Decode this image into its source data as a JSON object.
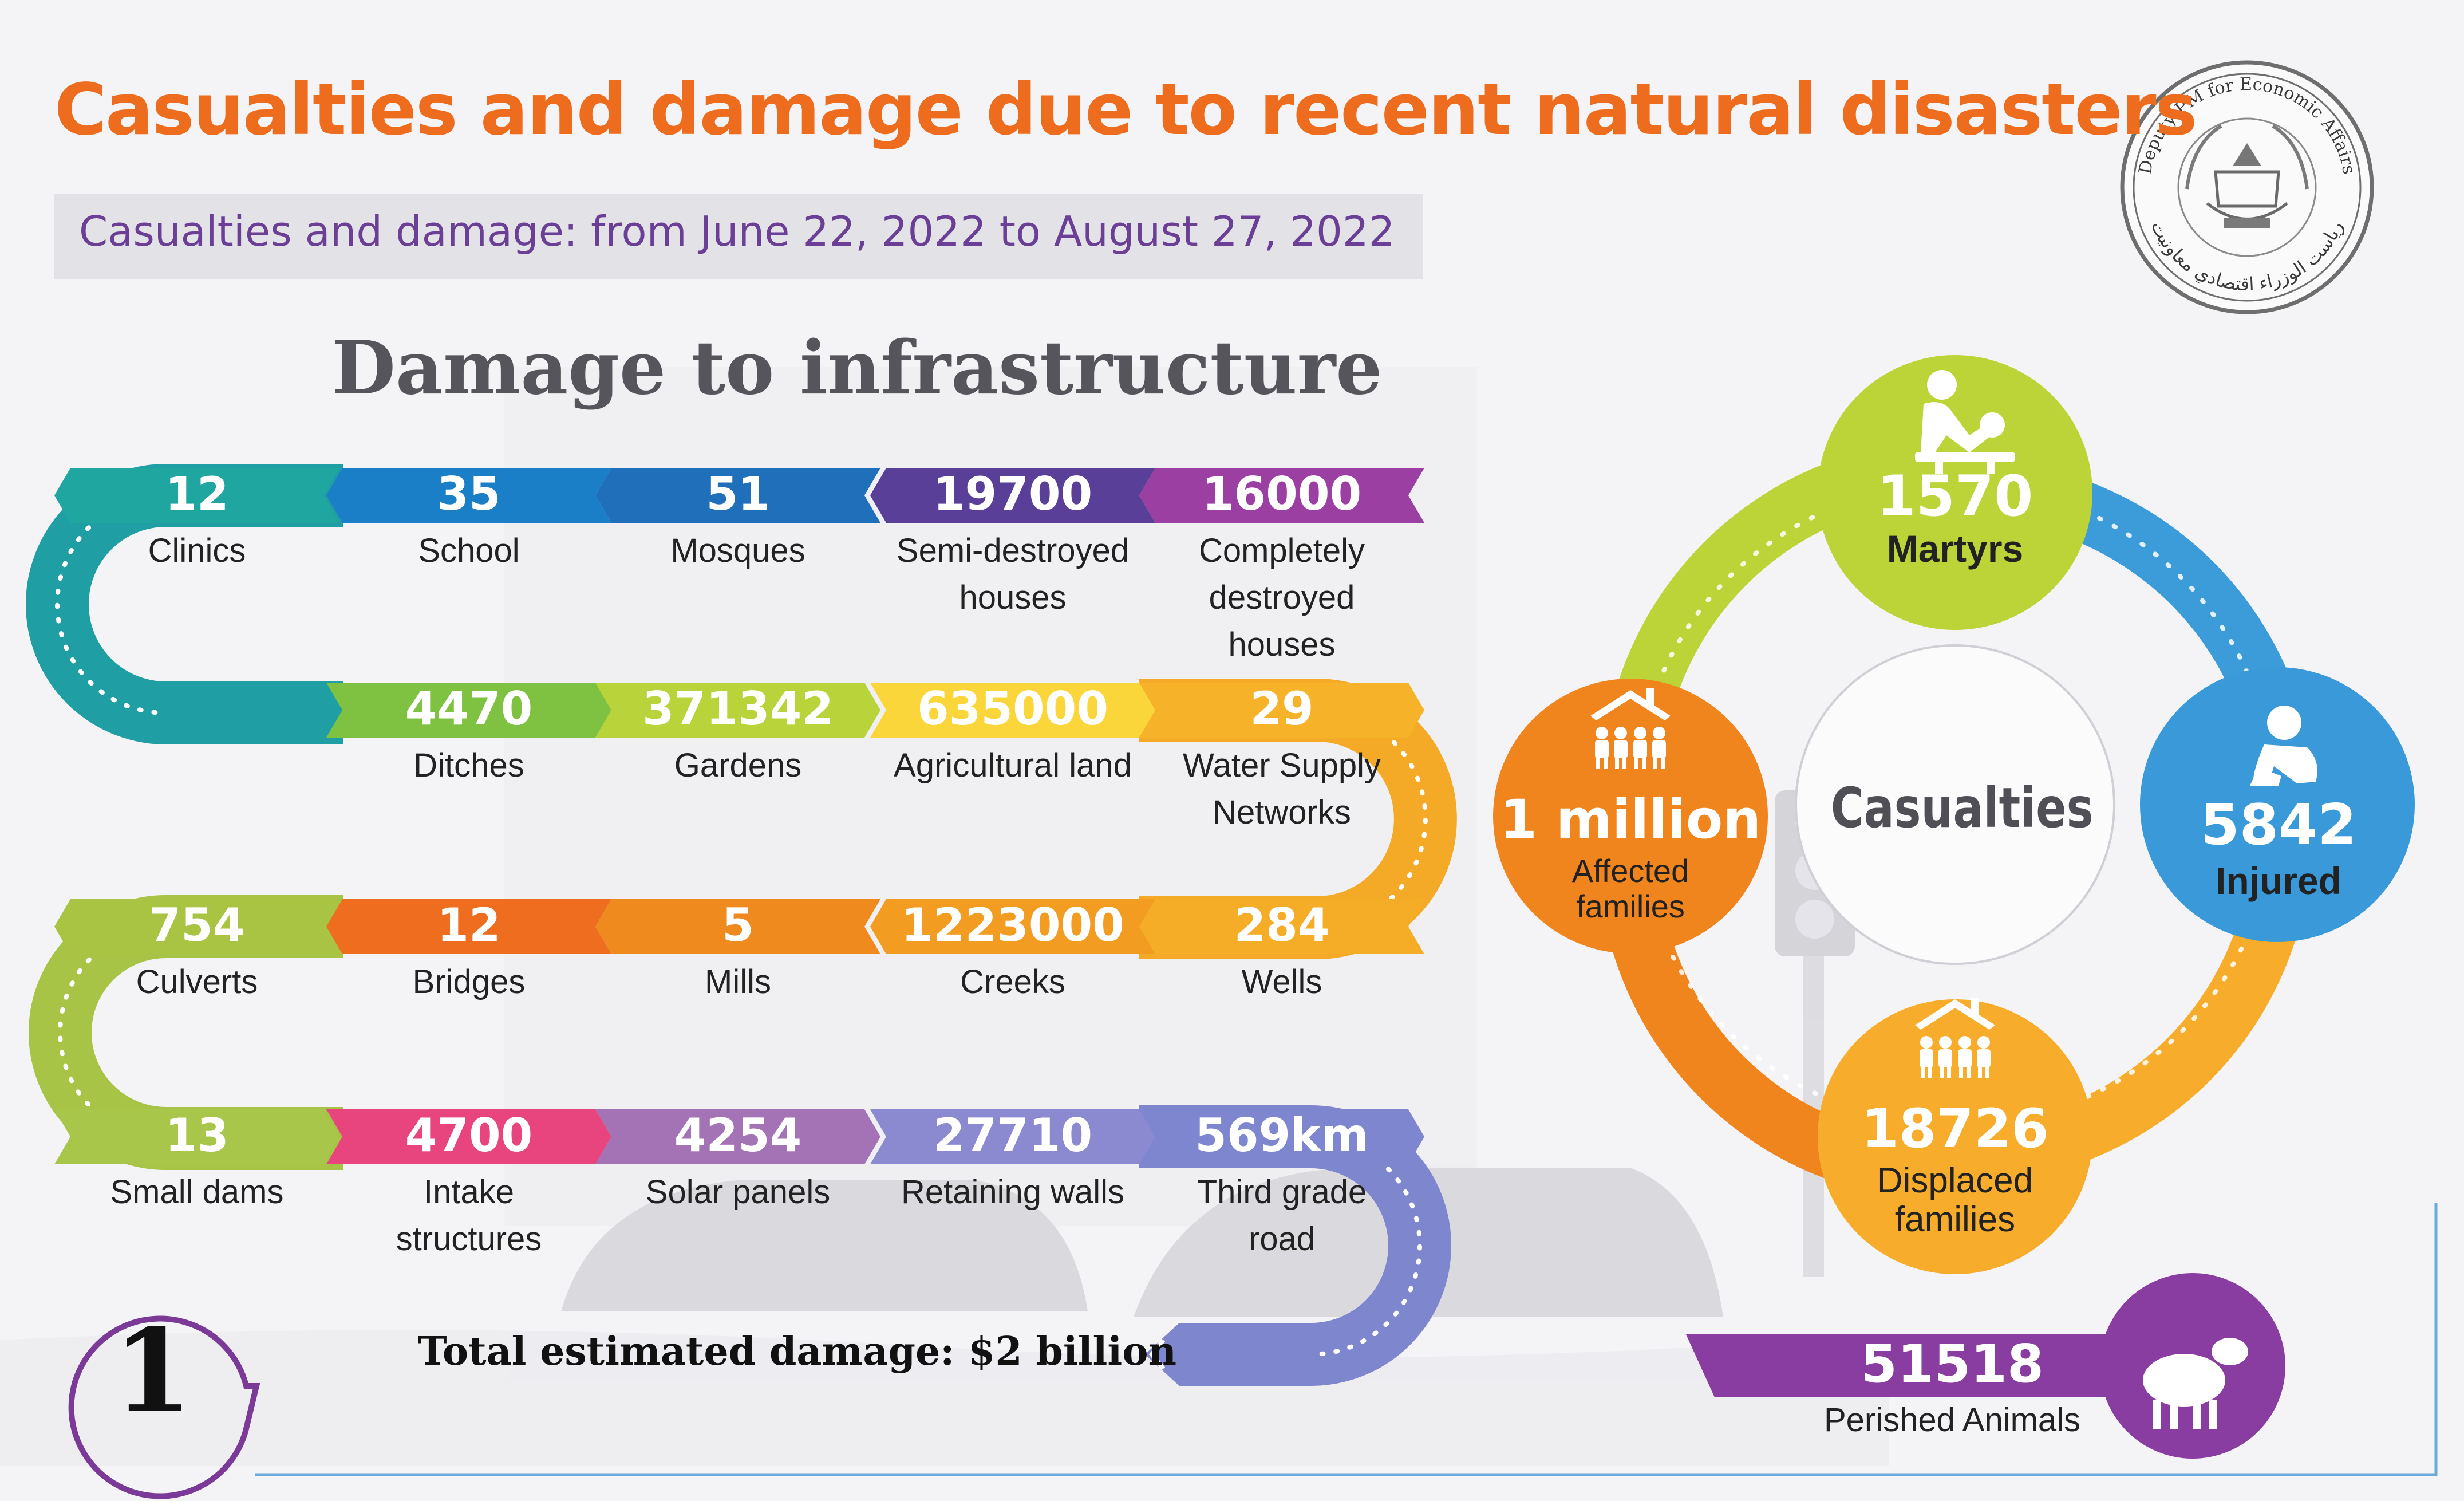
{
  "title": "Casualties and damage due to recent natural disasters",
  "subtitle": "Casualties and damage: from June 22, 2022 to August 27, 2022",
  "seal": {
    "text_top": "Deputy PM for Economic Affairs",
    "text_bottom": "ریاست الوزراء اقتصادي معاونیت"
  },
  "infrastructure": {
    "heading": "Damage to infrastructure",
    "rows": [
      [
        {
          "value": "12",
          "label": "Clinics",
          "color": "#1fa6a0"
        },
        {
          "value": "35",
          "label": "School",
          "color": "#1a7fc7"
        },
        {
          "value": "51",
          "label": "Mosques",
          "color": "#1f6fba"
        },
        {
          "value": "19700",
          "label": "Semi-destroyed houses",
          "color": "#5a3f98"
        },
        {
          "value": "16000",
          "label": "Completely destroyed houses",
          "color": "#9b3fa3"
        }
      ],
      [
        {
          "value": "4470",
          "label": "Ditches",
          "color": "#7fc241"
        },
        {
          "value": "371342",
          "label": "Gardens",
          "color": "#b9d33b"
        },
        {
          "value": "635000",
          "label": "Agricultural land",
          "color": "#fbd63a"
        },
        {
          "value": "29",
          "label": "Water Supply Networks",
          "color": "#f6b229"
        }
      ],
      [
        {
          "value": "754",
          "label": "Culverts",
          "color": "#a9c443"
        },
        {
          "value": "12",
          "label": "Bridges",
          "color": "#ef6d1f"
        },
        {
          "value": "5",
          "label": "Mills",
          "color": "#ef8a1e"
        },
        {
          "value": "1223000",
          "label": "Creeks",
          "color": "#f29d22"
        },
        {
          "value": "284",
          "label": "Wells",
          "color": "#f5ad28"
        }
      ],
      [
        {
          "value": "13",
          "label": "Small dams",
          "color": "#a8c64a"
        },
        {
          "value": "4700",
          "label": "Intake structures",
          "color": "#e8447d"
        },
        {
          "value": "4254",
          "label": "Solar panels",
          "color": "#a373b6"
        },
        {
          "value": "27710",
          "label": "Retaining walls",
          "color": "#8b8ad0"
        },
        {
          "value": "569km",
          "label": "Third grade road",
          "color": "#7d86cf"
        }
      ]
    ],
    "total": "Total estimated damage: $2 billion"
  },
  "page_number": "1",
  "casualties": {
    "center_label": "Casualties",
    "martyrs": {
      "value": "1570",
      "label": "Martyrs",
      "color": "#bcd437",
      "icon": "martyr-icon"
    },
    "injured": {
      "value": "5842",
      "label": "Injured",
      "color": "#3a9ad9",
      "icon": "injured-person-icon"
    },
    "displaced": {
      "value": "18726",
      "label": "Displaced families",
      "color": "#f7ad2b",
      "icon": "family-house-icon"
    },
    "affected": {
      "value": "1 million",
      "label": "Affected families",
      "color": "#f0841d",
      "icon": "family-house-icon"
    },
    "animals": {
      "value": "51518",
      "label": "Perished Animals",
      "color": "#8a3da0",
      "icon": "sheep-icon"
    }
  }
}
